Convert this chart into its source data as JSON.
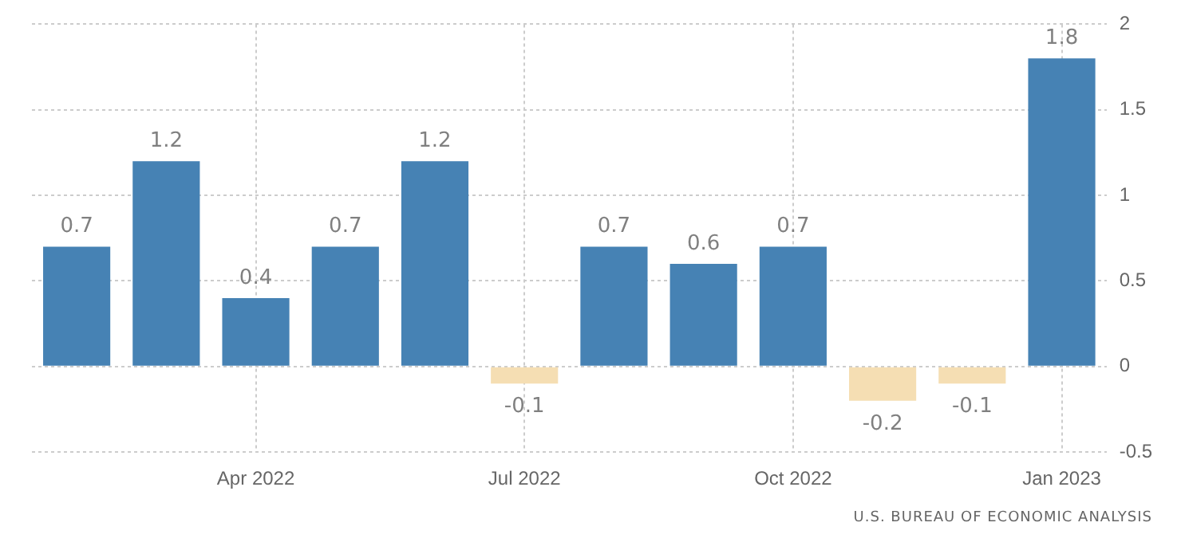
{
  "chart_data": {
    "type": "bar",
    "categories": [
      null,
      null,
      "Apr 2022",
      null,
      null,
      "Jul 2022",
      null,
      null,
      "Oct 2022",
      null,
      null,
      "Jan 2023"
    ],
    "values": [
      0.7,
      1.2,
      0.4,
      0.7,
      1.2,
      -0.1,
      0.7,
      0.6,
      0.7,
      -0.2,
      -0.1,
      1.8
    ],
    "colors": [
      "#4682b4",
      "#4682b4",
      "#4682b4",
      "#4682b4",
      "#4682b4",
      "#f5deb3",
      "#4682b4",
      "#4682b4",
      "#4682b4",
      "#f5deb3",
      "#f5deb3",
      "#4682b4"
    ],
    "ylim": [
      -0.5,
      2
    ],
    "yticks": [
      -0.5,
      0,
      0.5,
      1,
      1.5,
      2
    ],
    "grid": true,
    "data_labels": true,
    "legend": false,
    "annotations": [
      "U.S. BUREAU OF ECONOMIC ANALYSIS"
    ]
  }
}
